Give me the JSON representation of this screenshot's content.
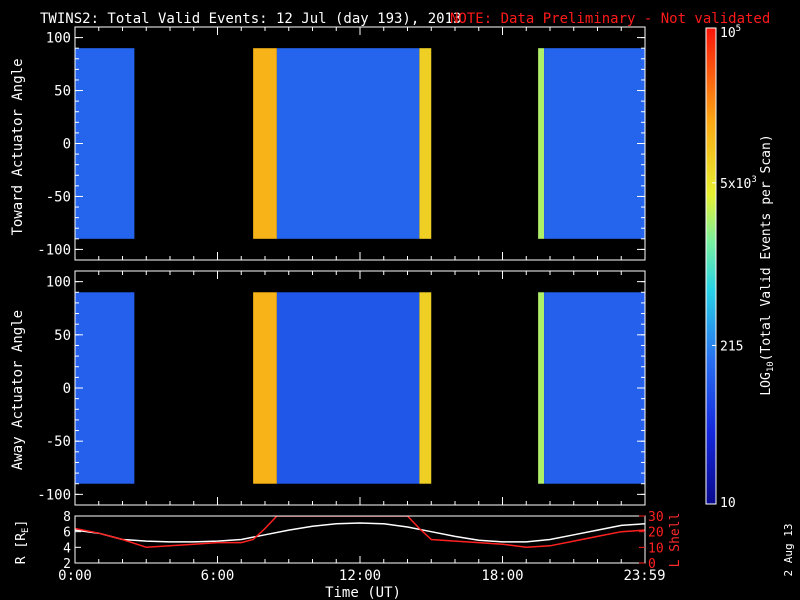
{
  "header": {
    "title": "TWINS2: Total Valid Events: 12 Jul (day 193), 2013",
    "note": "NOTE: Data Preliminary - Not validated"
  },
  "footer": {
    "date_stamp": "2 Aug 13"
  },
  "colors": {
    "background": "#000000",
    "foreground": "#ffffff",
    "note": "#ff1a1a",
    "lshell": "#ff2020",
    "radius": "#ffffff"
  },
  "chart_data": [
    {
      "type": "heatmap",
      "title": "",
      "ylabel": "Toward Actuator Angle",
      "xlabel": "",
      "xlim": [
        0,
        24
      ],
      "ylim": [
        -110,
        110
      ],
      "yticks": [
        100,
        50,
        0,
        -50,
        -100
      ],
      "data_ylim": [
        -90,
        90
      ],
      "data_segments": [
        {
          "start": "00:00",
          "end": "02:30",
          "level": 0.28
        },
        {
          "start": "07:30",
          "end": "08:30",
          "level": 0.78
        },
        {
          "start": "08:30",
          "end": "14:30",
          "level": 0.28
        },
        {
          "start": "14:30",
          "end": "15:00",
          "level": 0.72
        },
        {
          "start": "19:30",
          "end": "19:45",
          "level": 0.6
        },
        {
          "start": "19:45",
          "end": "24:00",
          "level": 0.28
        }
      ]
    },
    {
      "type": "heatmap",
      "title": "",
      "ylabel": "Away Actuator Angle",
      "xlabel": "",
      "xlim": [
        0,
        24
      ],
      "ylim": [
        -110,
        110
      ],
      "yticks": [
        100,
        50,
        0,
        -50,
        -100
      ],
      "data_ylim": [
        -90,
        90
      ],
      "data_segments": [
        {
          "start": "00:00",
          "end": "02:30",
          "level": 0.27
        },
        {
          "start": "07:30",
          "end": "08:30",
          "level": 0.78
        },
        {
          "start": "08:30",
          "end": "14:30",
          "level": 0.25
        },
        {
          "start": "14:30",
          "end": "15:00",
          "level": 0.72
        },
        {
          "start": "19:30",
          "end": "19:45",
          "level": 0.6
        },
        {
          "start": "19:45",
          "end": "24:00",
          "level": 0.27
        }
      ]
    },
    {
      "type": "line",
      "title": "",
      "xlabel": "Time (UT)",
      "ylabel": "R [RE]",
      "ylabel_main": "R [R",
      "ylabel_sub": "E",
      "ylabel_end": "]",
      "y2label": "L Shell",
      "xticks": [
        "0:00",
        "6:00",
        "12:00",
        "18:00",
        "23:59"
      ],
      "xtick_values": [
        0,
        6,
        12,
        18,
        23.98
      ],
      "xlim": [
        0,
        24
      ],
      "ylim": [
        2,
        8
      ],
      "yticks": [
        2,
        4,
        6,
        8
      ],
      "y2lim": [
        0,
        30
      ],
      "y2ticks": [
        0,
        10,
        20,
        30
      ],
      "series": [
        {
          "axis": "left",
          "x": [
            0,
            1,
            2,
            3,
            4,
            5,
            6,
            7,
            8,
            9,
            10,
            11,
            12,
            13,
            14,
            15,
            16,
            17,
            18,
            19,
            20,
            21,
            22,
            23,
            24
          ],
          "y": [
            6.2,
            5.8,
            5.0,
            4.8,
            4.7,
            4.7,
            4.8,
            5.0,
            5.6,
            6.2,
            6.7,
            7.0,
            7.1,
            7.0,
            6.6,
            6.0,
            5.4,
            4.9,
            4.7,
            4.7,
            5.0,
            5.6,
            6.2,
            6.8,
            7.0
          ]
        },
        {
          "axis": "right",
          "x": [
            0,
            1,
            2,
            3,
            4,
            5,
            6,
            7,
            7.5,
            8,
            8.5,
            14,
            14.5,
            15,
            16,
            17,
            18,
            19,
            20,
            21,
            22,
            23,
            24
          ],
          "y": [
            22,
            19,
            15,
            10,
            11,
            12,
            13,
            13,
            15,
            22,
            30,
            30,
            22,
            15,
            14,
            13,
            12,
            10,
            11,
            14,
            17,
            20,
            21
          ]
        }
      ]
    },
    {
      "type": "heatmap",
      "title": "",
      "ylabel": "LOG10(Total Valid Events per Scan)",
      "ylabel_prefix": "LOG",
      "ylabel_sub": "10",
      "ylabel_suffix": "(Total Valid Events per Scan)",
      "scale": "log",
      "ylim": [
        10,
        100000
      ],
      "tick_labels": [
        {
          "value": 100000,
          "label": "10",
          "sup": "5"
        },
        {
          "value": 5000,
          "label": "5x10",
          "sup": "3"
        },
        {
          "value": 215,
          "label": "215",
          "sup": ""
        },
        {
          "value": 10,
          "label": "10",
          "sup": ""
        }
      ]
    }
  ]
}
